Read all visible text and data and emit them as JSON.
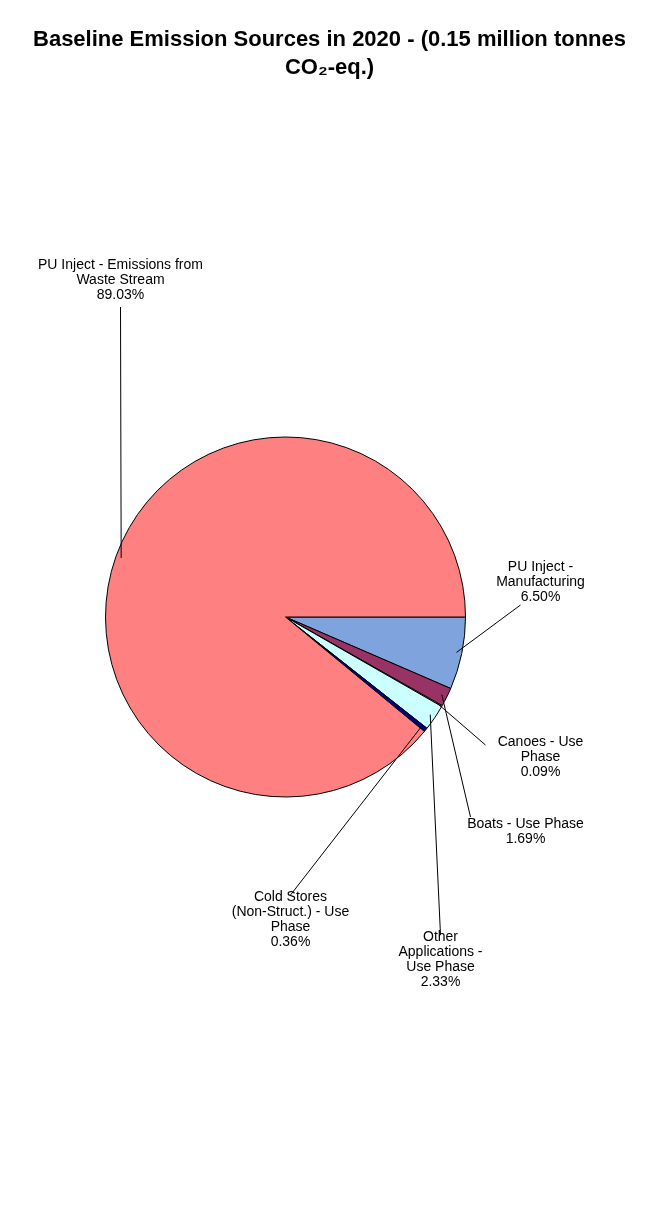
{
  "chart_data": {
    "type": "pie",
    "title": "Baseline Emission Sources in 2020 - (0.15 million tonnes CO₂-eq.)",
    "categories": [
      "PU Inject - Manufacturing",
      "Boats - Use Phase",
      "Canoes - Use Phase",
      "Other Applications - Use Phase",
      "Cold Stores (Non-Struct.) - Use Phase",
      "PU Inject - Emissions from Waste Stream"
    ],
    "values": [
      6.5,
      1.69,
      0.09,
      2.33,
      0.36,
      89.03
    ],
    "colors": [
      "#7fa3dc",
      "#993366",
      "#ffffcc",
      "#ccffff",
      "#000080",
      "#ff8080"
    ],
    "value_labels": [
      "6.50%",
      "1.69%",
      "0.09%",
      "2.33%",
      "0.36%",
      "89.03%"
    ],
    "legend": false
  }
}
